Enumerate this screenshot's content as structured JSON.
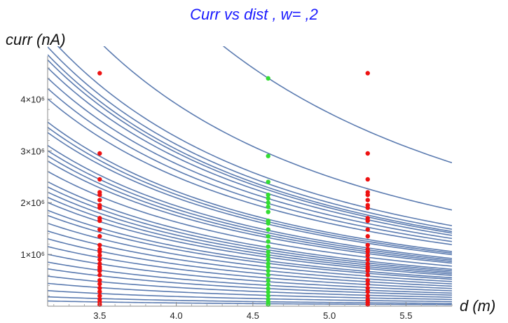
{
  "chart_data": {
    "type": "scatter",
    "title": "Curr  vs dist ,  w= ,2",
    "xlabel": "d (m)",
    "ylabel": "curr (nA)",
    "xlim": [
      3.16,
      5.8
    ],
    "ylim": [
      0,
      4750000.0
    ],
    "x_ticks": [
      3.5,
      4.0,
      4.5,
      5.0,
      5.5
    ],
    "x_tick_labels": [
      "3.5",
      "4.0",
      "4.5",
      "5.0",
      "5.5"
    ],
    "y_ticks": [
      1000000,
      2000000,
      3000000,
      4000000
    ],
    "y_tick_labels": [
      "1×10⁶",
      "2×10⁶",
      "3×10⁶",
      "4×10⁶"
    ],
    "grid": false,
    "curve_color": "#5b7bb0",
    "curves": {
      "function": "y = A / x^2",
      "coefficients_A": [
        93200000.0,
        62500000.0,
        52300000.0,
        50000000.0,
        48500000.0,
        47500000.0,
        46000000.0,
        44000000.0,
        42000000.0,
        40000000.0,
        35500000.0,
        34500000.0,
        33500000.0,
        31000000.0,
        30000000.0,
        29000000.0,
        28000000.0,
        26000000.0,
        24000000.0,
        23000000.0,
        22000000.0,
        21000000.0,
        20000000.0,
        18500000.0,
        17500000.0,
        16000000.0,
        14500000.0,
        13000000.0,
        11500000.0,
        10000000.0,
        8500000.0,
        7200000.0,
        5800000.0,
        4400000.0,
        3000000.0,
        1800000.0,
        1000000.0
      ]
    },
    "series": [
      {
        "color": "#ee1111",
        "x": 3.5,
        "values": [
          4500000,
          2950000,
          2450000,
          2200000,
          2150000,
          2050000,
          1950000,
          1900000,
          1700000,
          1650000,
          1480000,
          1350000,
          1180000,
          1100000,
          1050000,
          980000,
          900000,
          820000,
          760000,
          720000,
          680000,
          600000,
          500000,
          430000,
          350000,
          280000,
          200000,
          130000,
          80000,
          30000
        ]
      },
      {
        "color": "#33dd33",
        "x": 4.6,
        "values": [
          4400000,
          2900000,
          2400000,
          2150000,
          2080000,
          2000000,
          1920000,
          1820000,
          1650000,
          1600000,
          1480000,
          1350000,
          1250000,
          1150000,
          1050000,
          980000,
          900000,
          820000,
          760000,
          680000,
          600000,
          500000,
          420000,
          340000,
          270000,
          200000,
          130000,
          80000,
          30000
        ]
      },
      {
        "color": "#ee1111",
        "x": 5.25,
        "values": [
          4500000,
          2950000,
          2450000,
          2200000,
          2150000,
          2050000,
          1950000,
          1900000,
          1700000,
          1650000,
          1480000,
          1350000,
          1180000,
          1100000,
          1050000,
          980000,
          900000,
          820000,
          760000,
          720000,
          680000,
          600000,
          500000,
          430000,
          350000,
          280000,
          200000,
          130000,
          80000,
          30000
        ]
      }
    ]
  }
}
